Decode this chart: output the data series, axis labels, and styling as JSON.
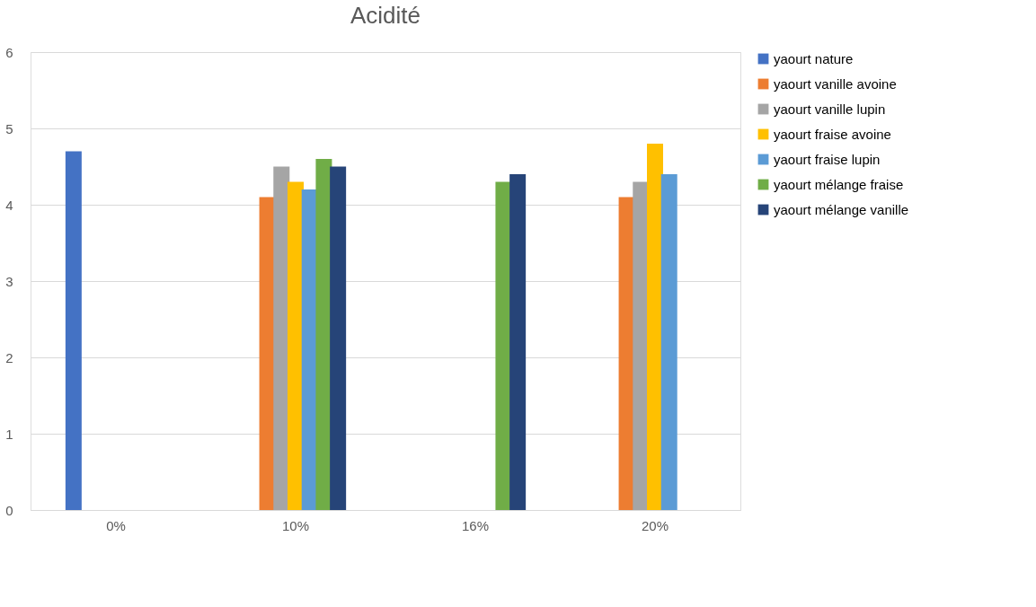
{
  "chart_data": {
    "type": "bar",
    "title": "Acidité",
    "categories": [
      "0%",
      "10%",
      "16%",
      "20%"
    ],
    "series": [
      {
        "name": "yaourt nature",
        "color": "#4472c4",
        "values": [
          4.7,
          null,
          null,
          null
        ]
      },
      {
        "name": "yaourt vanille avoine",
        "color": "#ed7d31",
        "values": [
          null,
          4.1,
          null,
          4.1
        ]
      },
      {
        "name": "yaourt vanille lupin",
        "color": "#a5a5a5",
        "values": [
          null,
          4.5,
          null,
          4.3
        ]
      },
      {
        "name": "yaourt fraise avoine",
        "color": "#ffc000",
        "values": [
          null,
          4.3,
          null,
          4.8
        ]
      },
      {
        "name": "yaourt fraise lupin",
        "color": "#5b9bd5",
        "values": [
          null,
          4.2,
          null,
          4.4
        ]
      },
      {
        "name": "yaourt mélange fraise",
        "color": "#70ad47",
        "values": [
          null,
          4.6,
          4.3,
          null
        ]
      },
      {
        "name": "yaourt mélange vanille",
        "color": "#264478",
        "values": [
          null,
          4.5,
          4.4,
          null
        ]
      }
    ],
    "ylim": [
      0,
      6
    ],
    "yticks": [
      0,
      1,
      2,
      3,
      4,
      5,
      6
    ],
    "grid": "y",
    "legend": "right"
  }
}
